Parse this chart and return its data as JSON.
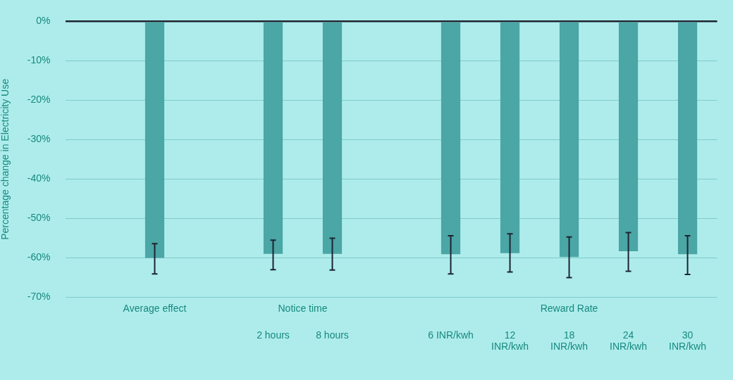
{
  "chart_data": {
    "type": "bar",
    "ylabel": "Percentage change in Electricity Use",
    "categories": [
      null,
      null,
      null,
      "2 hours",
      "8 hours",
      null,
      "6 INR/kwh",
      "12 INR/kwh",
      "18 INR/kwh",
      "24 INR/kwh",
      "30 INR/kwh"
    ],
    "values": [
      null,
      -60,
      null,
      -59,
      -59,
      null,
      -59.1,
      -58.8,
      -59.8,
      -58.3,
      -59.1
    ],
    "errors": [
      null,
      [
        -64.1,
        -56.4
      ],
      null,
      [
        -63,
        -55.5
      ],
      [
        -63.1,
        -55
      ],
      null,
      [
        -64.1,
        -54.4
      ],
      [
        -63.6,
        -53.9
      ],
      [
        -65,
        -54.7
      ],
      [
        -63.4,
        -53.6
      ],
      [
        -64.2,
        -54.4
      ]
    ],
    "color": "#4ba6a6",
    "ylim": [
      -70,
      0
    ],
    "yticks": [
      {
        "value": -70,
        "label": "-70%"
      },
      {
        "value": -60,
        "label": "-60%"
      },
      {
        "value": -50,
        "label": "-50%"
      },
      {
        "value": -40,
        "label": "-40%"
      },
      {
        "value": -30,
        "label": "-30%"
      },
      {
        "value": -20,
        "label": "-20%"
      },
      {
        "value": -10,
        "label": "-10%"
      },
      {
        "value": 0,
        "label": "0%"
      }
    ],
    "grid": "y",
    "annotations": [
      "Average effect",
      "Notice time",
      "Reward Rate"
    ]
  }
}
